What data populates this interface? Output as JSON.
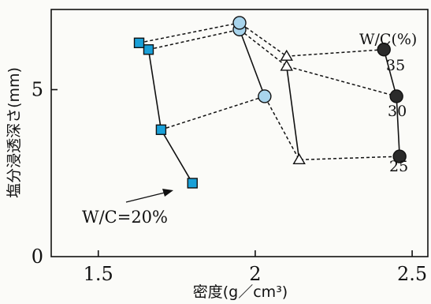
{
  "chart_data": {
    "type": "scatter",
    "xlabel": "密度(g／cm³)",
    "ylabel": "塩分浸透深さ(mm)",
    "xlim": [
      1.35,
      2.55
    ],
    "ylim": [
      0,
      7.4
    ],
    "x_ticks": [
      1.5,
      2,
      2.5
    ],
    "x_tick_labels": [
      "1.5",
      "2",
      "2.5"
    ],
    "y_ticks": [
      0,
      5
    ],
    "y_tick_labels": [
      "0",
      "5"
    ],
    "grid": false,
    "legend_title": "W/C(%)",
    "series": [
      {
        "name": "20",
        "marker": "square",
        "color": "#1aa0d8",
        "connect": "solid",
        "x": [
          1.8,
          1.7,
          1.66,
          1.63
        ],
        "y": [
          2.2,
          3.8,
          6.2,
          6.4
        ]
      },
      {
        "name": "25",
        "marker": "circle",
        "color": "#a8d4ec",
        "connect": "solid",
        "x": [
          2.03,
          1.95,
          1.95
        ],
        "y": [
          4.8,
          6.8,
          7.0
        ]
      },
      {
        "name": "30",
        "marker": "triangle",
        "color": "#ffffff",
        "connect": "solid",
        "x": [
          2.14,
          2.1,
          2.1
        ],
        "y": [
          2.9,
          5.7,
          6.0
        ]
      },
      {
        "name": "35",
        "marker": "circle",
        "color": "#2b2b2b",
        "connect": "solid",
        "x": [
          2.46,
          2.45,
          2.41
        ],
        "y": [
          3.0,
          4.8,
          6.2
        ]
      }
    ],
    "dashed_links": [
      {
        "name": "W/C 35",
        "x": [
          1.63,
          1.95,
          2.1,
          2.41
        ],
        "y": [
          6.4,
          7.0,
          6.0,
          6.2
        ]
      },
      {
        "name": "W/C 30",
        "x": [
          1.66,
          1.95,
          2.1,
          2.45
        ],
        "y": [
          6.2,
          6.8,
          5.7,
          4.8
        ]
      },
      {
        "name": "W/C 25",
        "x": [
          1.7,
          2.03,
          2.14,
          2.46
        ],
        "y": [
          3.8,
          4.8,
          2.9,
          3.0
        ]
      }
    ],
    "right_labels": [
      "35",
      "30",
      "25"
    ],
    "annotation": "W/C=20%"
  }
}
